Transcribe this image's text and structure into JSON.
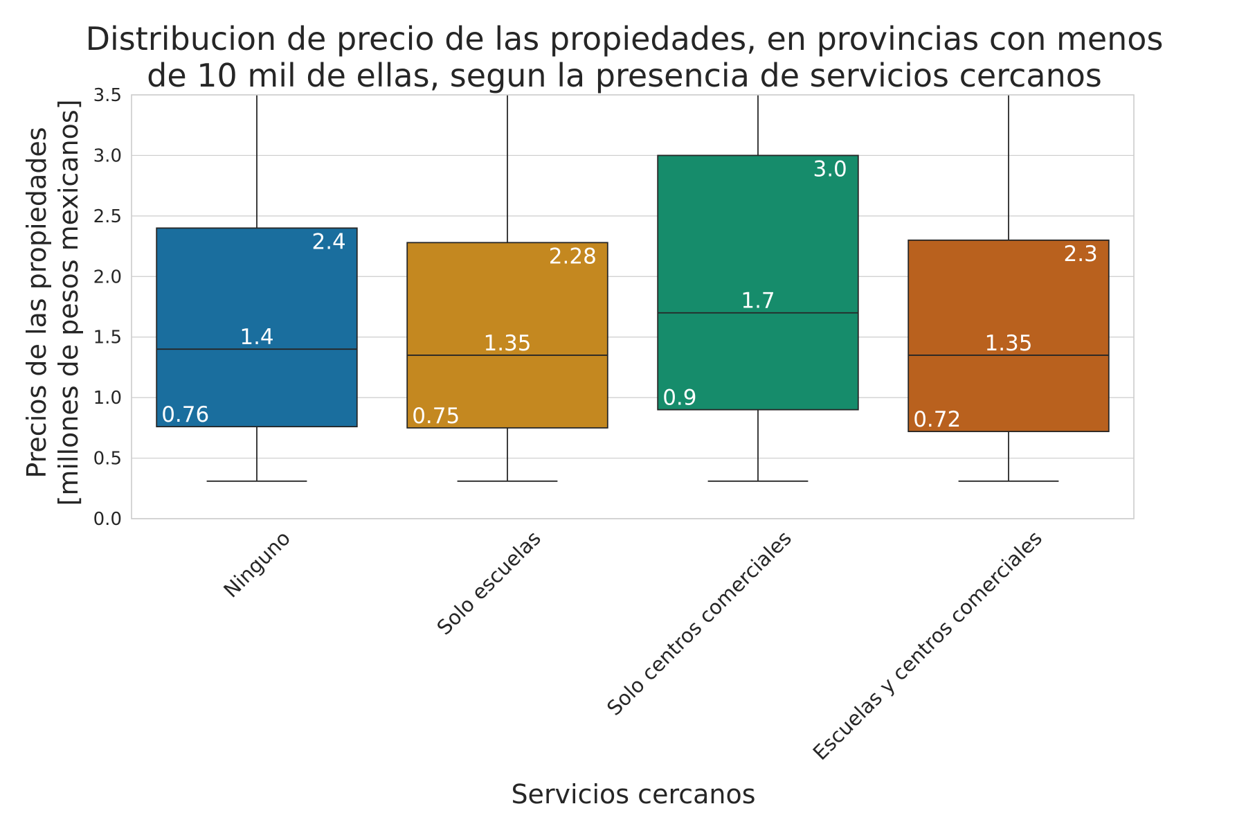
{
  "chart_data": {
    "type": "box",
    "title_lines": [
      "Distribucion de precio de las propiedades, en provincias con menos",
      "de 10 mil de ellas, segun la presencia de servicios cercanos"
    ],
    "xlabel": "Servicios cercanos",
    "ylabel_lines": [
      "Precios de las propiedades",
      "[millones de pesos mexicanos]"
    ],
    "ylim": [
      0,
      3.5
    ],
    "yticks": [
      "0.0",
      "0.5",
      "1.0",
      "1.5",
      "2.0",
      "2.5",
      "3.0",
      "3.5"
    ],
    "grid": true,
    "categories": [
      "Ninguno",
      "Solo escuelas",
      "Solo centros comerciales",
      "Escuelas y centros comerciales"
    ],
    "boxes": [
      {
        "category": "Ninguno",
        "whisker_low": 0.31,
        "q1": 0.76,
        "median": 1.4,
        "q3": 2.4,
        "whisker_high": 3.5,
        "color": "#1a6e9e",
        "labels": {
          "q1": "0.76",
          "median": "1.4",
          "q3": "2.4"
        }
      },
      {
        "category": "Solo escuelas",
        "whisker_low": 0.31,
        "q1": 0.75,
        "median": 1.35,
        "q3": 2.28,
        "whisker_high": 3.5,
        "color": "#c48820",
        "labels": {
          "q1": "0.75",
          "median": "1.35",
          "q3": "2.28"
        }
      },
      {
        "category": "Solo centros comerciales",
        "whisker_low": 0.31,
        "q1": 0.9,
        "median": 1.7,
        "q3": 3.0,
        "whisker_high": 3.5,
        "color": "#168c6b",
        "labels": {
          "q1": "0.9",
          "median": "1.7",
          "q3": "3.0"
        }
      },
      {
        "category": "Escuelas y centros comerciales",
        "whisker_low": 0.31,
        "q1": 0.72,
        "median": 1.35,
        "q3": 2.3,
        "whisker_high": 3.5,
        "color": "#b9611e",
        "labels": {
          "q1": "0.72",
          "median": "1.35",
          "q3": "2.3"
        }
      }
    ]
  }
}
